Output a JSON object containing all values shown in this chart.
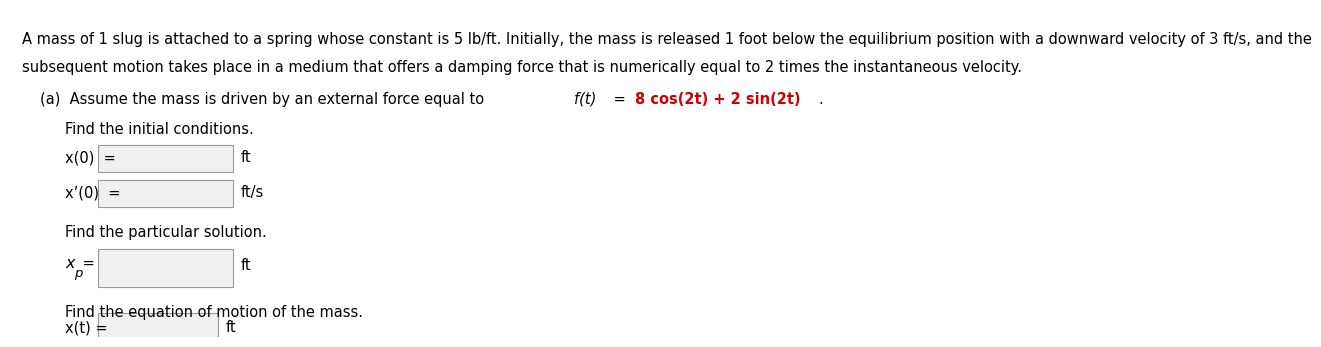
{
  "bg_color": "#ffffff",
  "text_color": "#000000",
  "red_color": "#cc0000",
  "paragraph1": "A mass of 1 slug is attached to a spring whose constant is 5 lb/ft. Initially, the mass is released 1 foot below the equilibrium position with a downward velocity of 3 ft/s, and the",
  "paragraph2": "subsequent motion takes place in a medium that offers a damping force that is numerically equal to 2 times the instantaneous velocity.",
  "part_a_start": "(a)  Assume the mass is driven by an external force equal to ",
  "part_a_ft": "f(t)",
  "part_a_eq": " = ",
  "part_a_red": "8 cos(2t) + 2 sin(2t)",
  "part_a_dot": ".",
  "find_initial": "Find the initial conditions.",
  "x0_label": "x(0)  =",
  "x0_unit": "ft",
  "xp0_label": "x’(0)  =",
  "xp0_unit": "ft/s",
  "find_particular": "Find the particular solution.",
  "xp_main": "x",
  "xp_sub": "p",
  "xp_eq": " =",
  "xp_unit": "ft",
  "find_motion": "Find the equation of motion of the mass.",
  "xt_label": "x(t) =",
  "xt_unit": "ft",
  "font_size": 10.5
}
